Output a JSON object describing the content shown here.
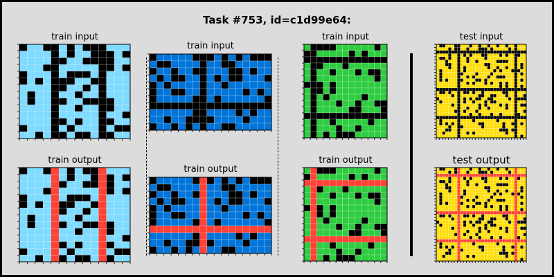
{
  "title": "Task #753, id=c1d99e64:",
  "colors": {
    "black": "#000000",
    "red": "#ff4136",
    "light_blue": "#7fdbff",
    "blue": "#0074d9",
    "green": "#2ecc40",
    "yellow": "#ffdc00"
  },
  "panels": [
    {
      "label": "train input",
      "color": "#7fdbff",
      "rows": 14,
      "cols": 14,
      "red_rows": [],
      "red_cols": [],
      "black_rows": [],
      "black_cols": [
        4,
        10
      ],
      "density": 0.25,
      "seed": 11,
      "red_visible": false
    },
    {
      "label": "train output",
      "color": "#7fdbff",
      "rows": 14,
      "cols": 14,
      "red_rows": [],
      "red_cols": [
        4,
        10
      ],
      "black_rows": [],
      "black_cols": [],
      "density": 0.25,
      "seed": 11,
      "red_visible": true
    },
    {
      "label": "train input",
      "color": "#0074d9",
      "rows": 11,
      "cols": 17,
      "red_rows": [],
      "red_cols": [],
      "black_rows": [
        7
      ],
      "black_cols": [
        7
      ],
      "density": 0.3,
      "seed": 23,
      "red_visible": false
    },
    {
      "label": "train output",
      "color": "#0074d9",
      "rows": 11,
      "cols": 17,
      "red_rows": [
        7
      ],
      "red_cols": [
        7
      ],
      "black_rows": [],
      "black_cols": [],
      "density": 0.3,
      "seed": 23,
      "red_visible": true
    },
    {
      "label": "train input",
      "color": "#2ecc40",
      "rows": 15,
      "cols": 13,
      "red_rows": [],
      "red_cols": [],
      "black_rows": [
        2,
        11
      ],
      "black_cols": [
        1
      ],
      "density": 0.22,
      "seed": 37,
      "red_visible": false
    },
    {
      "label": "train output",
      "color": "#2ecc40",
      "rows": 15,
      "cols": 13,
      "red_rows": [
        2,
        11
      ],
      "red_cols": [
        1
      ],
      "black_rows": [],
      "black_cols": [],
      "density": 0.22,
      "seed": 37,
      "red_visible": true
    },
    {
      "label": "test input",
      "color": "#ffdc00",
      "rows": 30,
      "cols": 30,
      "red_rows": [],
      "red_cols": [],
      "black_rows": [
        2,
        14,
        23
      ],
      "black_cols": [
        7,
        26
      ],
      "density": 0.2,
      "seed": 53,
      "red_visible": false
    },
    {
      "label": "test output",
      "color": "#ffdc00",
      "rows": 30,
      "cols": 30,
      "red_rows": [
        2,
        14,
        23
      ],
      "red_cols": [
        7,
        26
      ],
      "black_rows": [],
      "black_cols": [],
      "density": 0.2,
      "seed": 53,
      "red_visible": true
    }
  ]
}
